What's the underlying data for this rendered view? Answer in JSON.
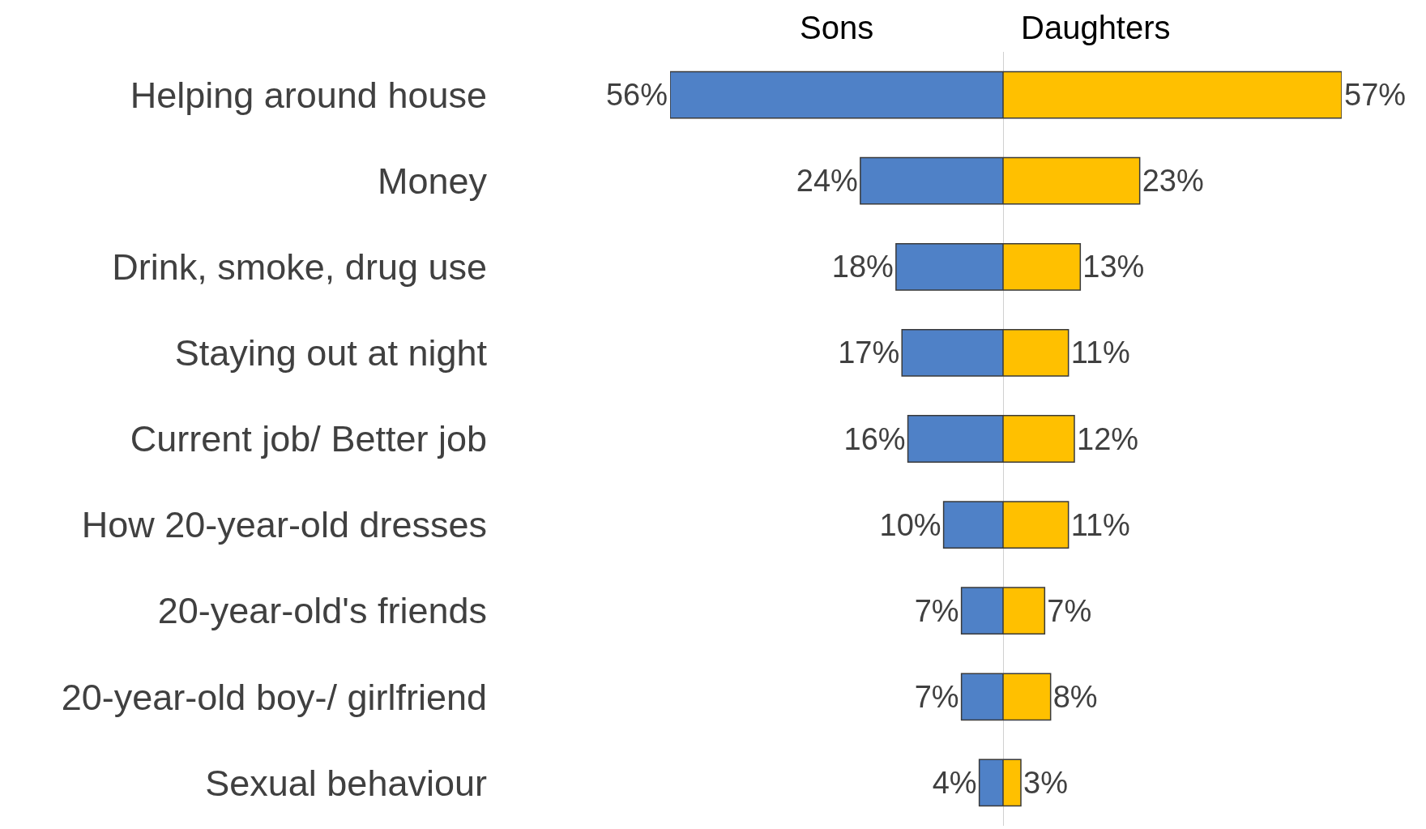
{
  "chart_data": [
    {
      "type": "bar",
      "orientation": "horizontal",
      "title": "Sons",
      "categories": [
        "Helping around house",
        "Money",
        "Drink, smoke, drug use",
        "Staying out at night",
        "Current job/ Better job",
        "How 20-year-old dresses",
        "20-year-old's friends",
        "20-year-old boy-/ girlfriend",
        "Sexual behaviour"
      ],
      "series": [
        {
          "color": "#4f81c7",
          "values": [
            56,
            24,
            18,
            17,
            16,
            10,
            7,
            7,
            4
          ],
          "value_labels": [
            "56%",
            "24%",
            "18%",
            "17%",
            "16%",
            "10%",
            "7%",
            "7%",
            "4%"
          ]
        }
      ],
      "xlim": [
        56,
        0
      ],
      "tick_labels": "y",
      "grid": false
    },
    {
      "type": "bar",
      "orientation": "horizontal",
      "title": "Daughters",
      "categories": [
        "Helping around house",
        "Money",
        "Drink, smoke, drug use",
        "Staying out at night",
        "Current job/ Better job",
        "How 20-year-old dresses",
        "20-year-old's friends",
        "20-year-old boy-/ girlfriend",
        "Sexual behaviour"
      ],
      "series": [
        {
          "color": "#ffc000",
          "values": [
            57,
            23,
            13,
            11,
            12,
            11,
            7,
            8,
            3
          ],
          "value_labels": [
            "57%",
            "23%",
            "13%",
            "11%",
            "12%",
            "11%",
            "7%",
            "8%",
            "3%"
          ]
        }
      ],
      "xlim": [
        0,
        57
      ],
      "tick_labels": false,
      "grid": false
    }
  ]
}
